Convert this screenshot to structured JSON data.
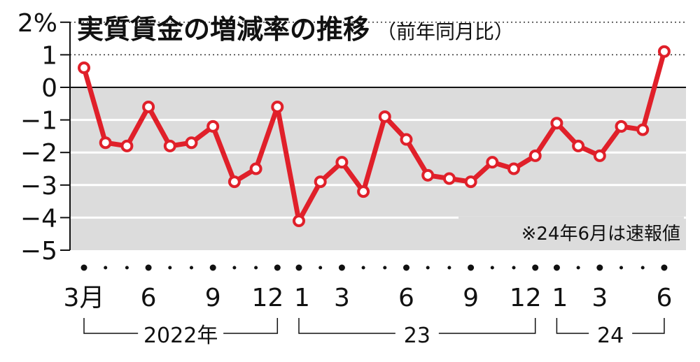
{
  "chart_data": {
    "type": "line",
    "title": "実質賃金の増減率の推移",
    "subtitle": "（前年同月比）",
    "note": "※24年6月は速報値",
    "ylabel": "",
    "ylim": [
      -5,
      2
    ],
    "yticks": [
      2,
      1,
      0,
      -1,
      -2,
      -3,
      -4,
      -5
    ],
    "ytick_labels": [
      "2%",
      "1",
      "0",
      "−1",
      "−2",
      "−3",
      "−4",
      "−5"
    ],
    "x": [
      "2022-03",
      "2022-04",
      "2022-05",
      "2022-06",
      "2022-07",
      "2022-08",
      "2022-09",
      "2022-10",
      "2022-11",
      "2022-12",
      "2023-01",
      "2023-02",
      "2023-03",
      "2023-04",
      "2023-05",
      "2023-06",
      "2023-07",
      "2023-08",
      "2023-09",
      "2023-10",
      "2023-11",
      "2023-12",
      "2024-01",
      "2024-02",
      "2024-03",
      "2024-04",
      "2024-05",
      "2024-06"
    ],
    "xtick_labels": [
      {
        "i": 0,
        "label": "3月"
      },
      {
        "i": 3,
        "label": "6"
      },
      {
        "i": 6,
        "label": "9"
      },
      {
        "i": 9,
        "label": "12"
      },
      {
        "i": 10,
        "label": "1"
      },
      {
        "i": 12,
        "label": "3"
      },
      {
        "i": 15,
        "label": "6"
      },
      {
        "i": 18,
        "label": "9"
      },
      {
        "i": 21,
        "label": "12"
      },
      {
        "i": 22,
        "label": "1"
      },
      {
        "i": 24,
        "label": "3"
      },
      {
        "i": 27,
        "label": "6"
      }
    ],
    "years": [
      {
        "start": 0,
        "end": 9,
        "label": "2022年"
      },
      {
        "start": 10,
        "end": 21,
        "label": "23"
      },
      {
        "start": 22,
        "end": 27,
        "label": "24"
      }
    ],
    "series": [
      {
        "name": "実質賃金",
        "color": "#e0202a",
        "values": [
          0.6,
          -1.7,
          -1.8,
          -0.6,
          -1.8,
          -1.7,
          -1.2,
          -2.9,
          -2.5,
          -0.6,
          -4.1,
          -2.9,
          -2.3,
          -3.2,
          -0.9,
          -1.6,
          -2.7,
          -2.8,
          -2.9,
          -2.3,
          -2.5,
          -2.1,
          -1.1,
          -1.8,
          -2.1,
          -1.2,
          -1.3,
          1.1
        ]
      }
    ],
    "grid": true
  }
}
